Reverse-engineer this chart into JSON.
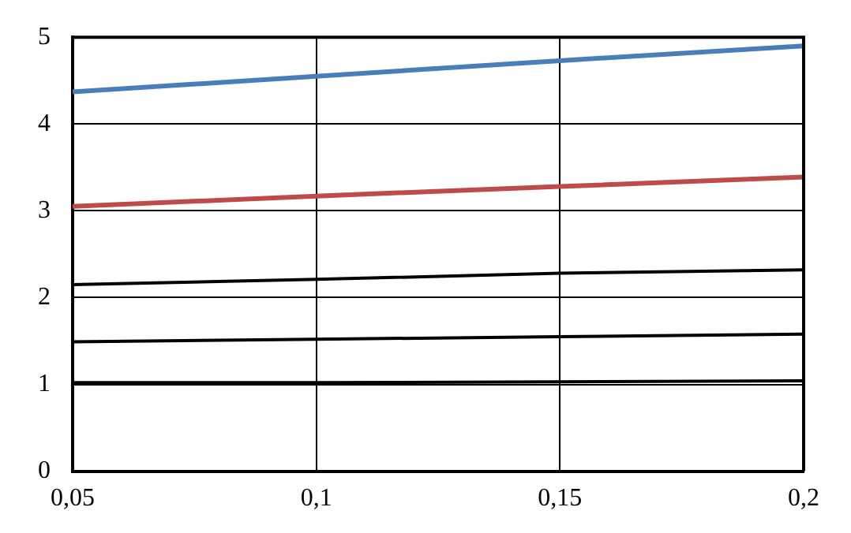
{
  "chart_data": {
    "type": "line",
    "x": [
      0.05,
      0.1,
      0.15,
      0.2
    ],
    "series": [
      {
        "color": "#4a7ebb",
        "values": [
          4.37,
          4.55,
          4.73,
          4.9
        ]
      },
      {
        "color": "#be4b48",
        "values": [
          3.05,
          3.17,
          3.28,
          3.39
        ]
      },
      {
        "color": "#000000",
        "values": [
          2.15,
          2.21,
          2.28,
          2.32
        ]
      },
      {
        "color": "#000000",
        "values": [
          1.49,
          1.52,
          1.55,
          1.58
        ]
      },
      {
        "color": "#000000",
        "values": [
          1.02,
          1.02,
          1.03,
          1.04
        ]
      }
    ],
    "xlim": [
      0.05,
      0.2
    ],
    "xticks": [
      {
        "value": 0.05,
        "label": "0,05"
      },
      {
        "value": 0.1,
        "label": "0,1"
      },
      {
        "value": 0.15,
        "label": "0,15"
      },
      {
        "value": 0.2,
        "label": "0,2"
      }
    ],
    "ylim": [
      0,
      5
    ],
    "yticks": [
      0,
      1,
      2,
      3,
      4,
      5
    ],
    "grid": true,
    "legend": false,
    "marker": "none",
    "line_style": "solid"
  }
}
